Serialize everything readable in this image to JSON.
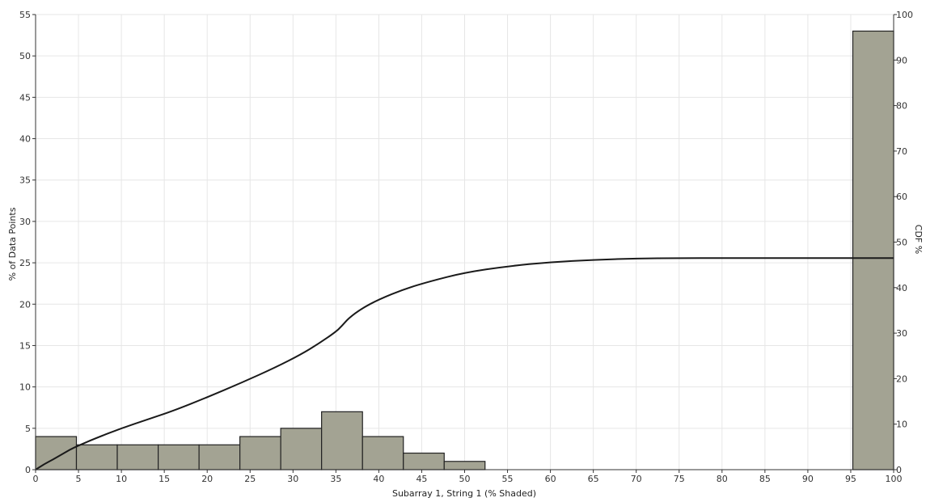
{
  "chart_data": {
    "type": "bar",
    "title": "",
    "xlabel": "Subarray 1, String 1 (% Shaded)",
    "ylabel": "% of Data Points",
    "y2label": "CDF %",
    "xlim": [
      0,
      100
    ],
    "ylim": [
      0,
      55
    ],
    "y2lim": [
      0,
      100
    ],
    "x_ticks": [
      0,
      5,
      10,
      15,
      20,
      25,
      30,
      35,
      40,
      45,
      50,
      55,
      60,
      65,
      70,
      75,
      80,
      85,
      90,
      95,
      100
    ],
    "y_ticks": [
      0,
      5,
      10,
      15,
      20,
      25,
      30,
      35,
      40,
      45,
      50,
      55
    ],
    "y2_ticks": [
      0,
      10,
      20,
      30,
      40,
      50,
      60,
      70,
      80,
      90,
      100
    ],
    "grid": true,
    "bar_color": "#a3a393",
    "bar_edge_color": "#222222",
    "line_color": "#1a1a1a",
    "bins": [
      {
        "x0": 0,
        "x1": 4.76,
        "value": 4
      },
      {
        "x0": 4.76,
        "x1": 9.52,
        "value": 3
      },
      {
        "x0": 9.52,
        "x1": 14.29,
        "value": 3
      },
      {
        "x0": 14.29,
        "x1": 19.05,
        "value": 3
      },
      {
        "x0": 19.05,
        "x1": 23.81,
        "value": 3
      },
      {
        "x0": 23.81,
        "x1": 28.57,
        "value": 4
      },
      {
        "x0": 28.57,
        "x1": 33.33,
        "value": 5
      },
      {
        "x0": 33.33,
        "x1": 38.1,
        "value": 7
      },
      {
        "x0": 38.1,
        "x1": 42.86,
        "value": 4
      },
      {
        "x0": 42.86,
        "x1": 47.62,
        "value": 2
      },
      {
        "x0": 47.62,
        "x1": 52.38,
        "value": 1
      },
      {
        "x0": 95.24,
        "x1": 100,
        "value": 53
      }
    ],
    "cdf": {
      "x": [
        0,
        1,
        2,
        3,
        4,
        5,
        7,
        10,
        13,
        16,
        20,
        24,
        28,
        31,
        33,
        35,
        35.7,
        36.5,
        38,
        40,
        43,
        46,
        50,
        55,
        60,
        65,
        70,
        75,
        80,
        90,
        100
      ],
      "y": [
        0,
        1.2,
        2.2,
        3.3,
        4.4,
        5.3,
        6.9,
        9.1,
        11.0,
        12.9,
        15.9,
        19.1,
        22.5,
        25.4,
        27.7,
        30.3,
        31.6,
        33.3,
        35.4,
        37.4,
        39.7,
        41.4,
        43.3,
        44.7,
        45.6,
        46.1,
        46.4,
        46.5,
        46.5,
        46.5,
        46.5
      ]
    }
  }
}
